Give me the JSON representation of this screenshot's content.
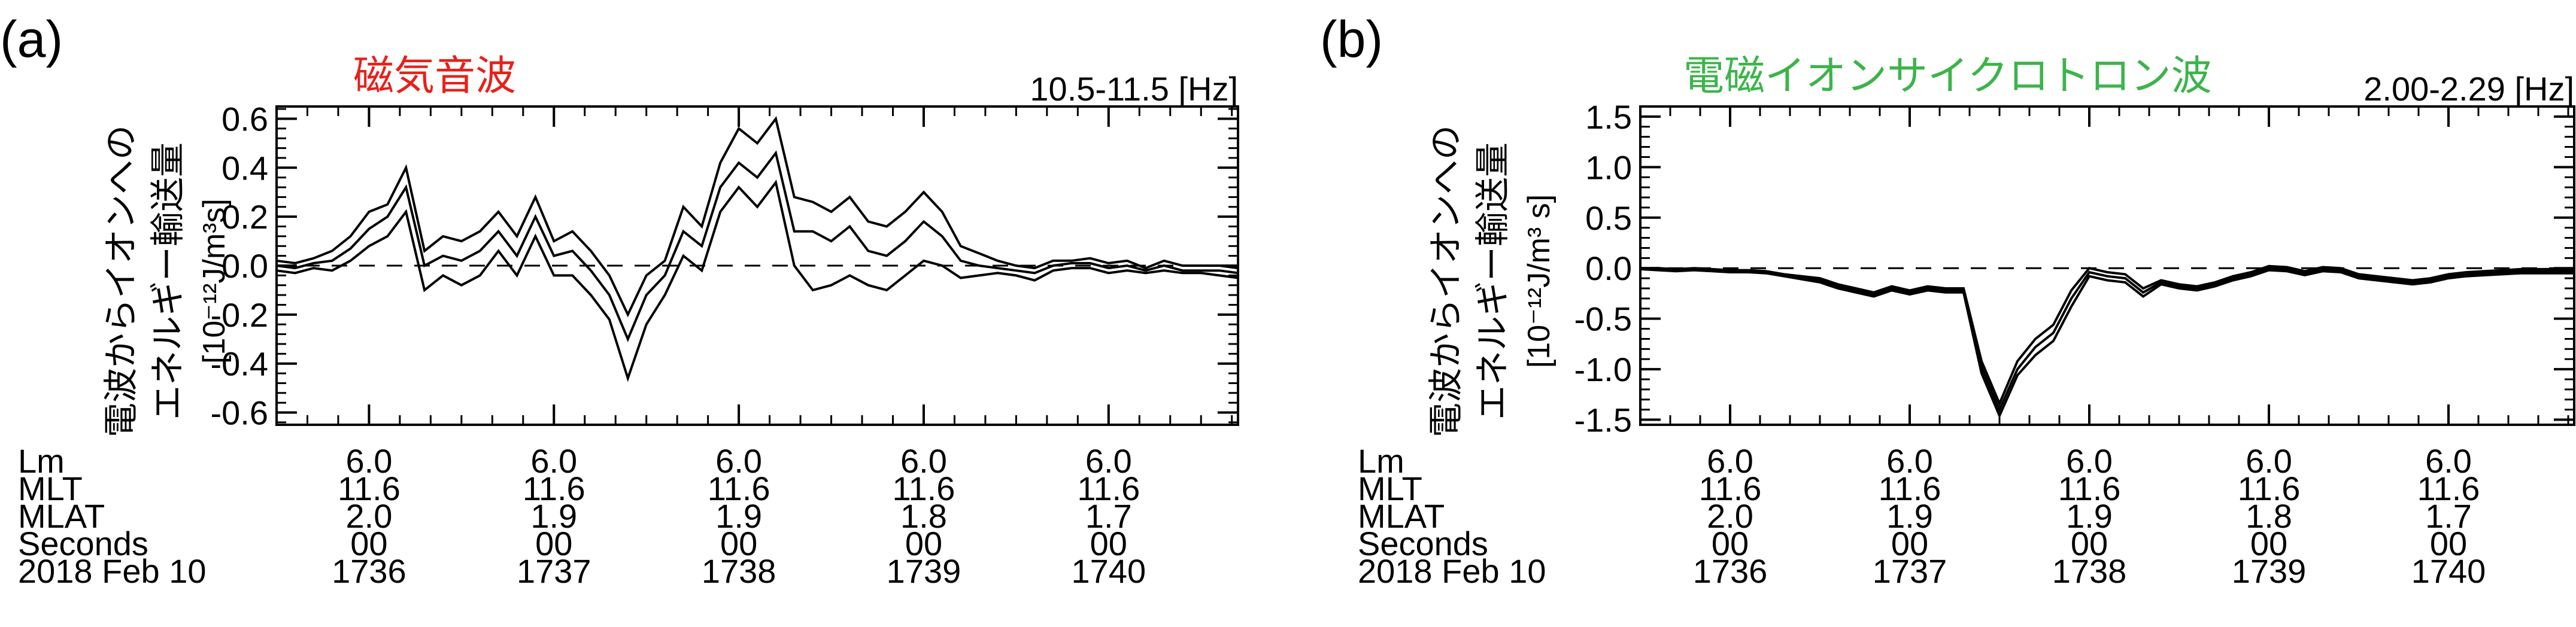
{
  "panels": [
    {
      "label": "(a)",
      "title": "磁気音波",
      "title_color": "#e8201a",
      "freq": "10.5-11.5 [Hz]",
      "ylabel_line1": "電波からイオンへの",
      "ylabel_line2": "エネルギー輸送量",
      "ylabel_unit": "[10⁻¹²J/m³s]"
    },
    {
      "label": "(b)",
      "title": "電磁イオンサイクロトロン波",
      "title_color": "#3cb44b",
      "freq": "2.00-2.29 [Hz]",
      "ylabel_line1": "電波からイオンへの",
      "ylabel_line2": "エネルギー輸送量",
      "ylabel_unit": "[10⁻¹²J/m³ s]"
    }
  ],
  "ephemeris_row_labels": [
    "Lm",
    "MLT",
    "MLAT",
    "Seconds",
    "2018 Feb 10"
  ],
  "ephemeris_columns": [
    {
      "Lm": "6.0",
      "MLT": "11.6",
      "MLAT": "2.0",
      "Seconds": "00",
      "time": "1736"
    },
    {
      "Lm": "6.0",
      "MLT": "11.6",
      "MLAT": "1.9",
      "Seconds": "00",
      "time": "1737"
    },
    {
      "Lm": "6.0",
      "MLT": "11.6",
      "MLAT": "1.9",
      "Seconds": "00",
      "time": "1738"
    },
    {
      "Lm": "6.0",
      "MLT": "11.6",
      "MLAT": "1.8",
      "Seconds": "00",
      "time": "1739"
    },
    {
      "Lm": "6.0",
      "MLT": "11.6",
      "MLAT": "1.7",
      "Seconds": "00",
      "time": "1740"
    }
  ],
  "chart_data": [
    {
      "type": "line",
      "title": "磁気音波",
      "subtitle": "10.5-11.5 [Hz]",
      "xlabel": "",
      "ylabel": "電波からイオンへの エネルギー輸送量 [10⁻¹²J/m³s]",
      "xlim": [
        1735.5,
        1740.7
      ],
      "ylim": [
        -0.65,
        0.65
      ],
      "yticks": [
        "0.6",
        "0.4",
        "0.2",
        "0.0",
        "-0.2",
        "-0.4",
        "-0.6"
      ],
      "ytick_values": [
        0.6,
        0.4,
        0.2,
        0.0,
        -0.2,
        -0.4,
        -0.6
      ],
      "xticks": [
        1736,
        1737,
        1738,
        1739,
        1740
      ],
      "zero_line": "dashed",
      "x": [
        1735.5,
        1735.6,
        1735.7,
        1735.8,
        1735.9,
        1736.0,
        1736.1,
        1736.2,
        1736.3,
        1736.4,
        1736.5,
        1736.6,
        1736.7,
        1736.8,
        1736.9,
        1737.0,
        1737.1,
        1737.2,
        1737.3,
        1737.4,
        1737.5,
        1737.6,
        1737.7,
        1737.8,
        1737.9,
        1738.0,
        1738.1,
        1738.2,
        1738.3,
        1738.4,
        1738.5,
        1738.6,
        1738.7,
        1738.8,
        1738.9,
        1739.0,
        1739.1,
        1739.2,
        1739.3,
        1739.4,
        1739.5,
        1739.6,
        1739.7,
        1739.8,
        1739.9,
        1740.0,
        1740.1,
        1740.2,
        1740.3,
        1740.4,
        1740.5,
        1740.6,
        1740.7
      ],
      "series": [
        {
          "values": [
            0.02,
            0.01,
            0.03,
            0.06,
            0.12,
            0.22,
            0.25,
            0.4,
            0.06,
            0.12,
            0.1,
            0.14,
            0.22,
            0.12,
            0.28,
            0.1,
            0.14,
            0.06,
            -0.04,
            -0.2,
            -0.04,
            0.02,
            0.24,
            0.16,
            0.42,
            0.56,
            0.5,
            0.6,
            0.28,
            0.26,
            0.22,
            0.28,
            0.18,
            0.16,
            0.22,
            0.3,
            0.22,
            0.08,
            0.05,
            0.02,
            0.0,
            -0.01,
            0.02,
            0.02,
            0.03,
            0.01,
            0.02,
            -0.01,
            0.02,
            0.0,
            0.0,
            0.0,
            -0.01
          ]
        },
        {
          "values": [
            0.0,
            -0.01,
            0.01,
            0.02,
            0.07,
            0.15,
            0.2,
            0.32,
            0.0,
            0.04,
            0.02,
            0.06,
            0.14,
            0.04,
            0.2,
            0.04,
            0.06,
            -0.02,
            -0.12,
            -0.3,
            -0.12,
            -0.04,
            0.14,
            0.08,
            0.32,
            0.42,
            0.36,
            0.46,
            0.14,
            0.14,
            0.1,
            0.16,
            0.06,
            0.04,
            0.1,
            0.18,
            0.12,
            0.02,
            0.0,
            -0.01,
            -0.02,
            -0.03,
            0.0,
            0.01,
            0.01,
            -0.01,
            0.0,
            -0.02,
            0.0,
            -0.02,
            -0.02,
            -0.02,
            -0.03
          ]
        },
        {
          "values": [
            -0.02,
            -0.03,
            -0.01,
            -0.02,
            0.02,
            0.08,
            0.12,
            0.22,
            -0.1,
            -0.04,
            -0.08,
            -0.04,
            0.06,
            -0.04,
            0.12,
            -0.04,
            -0.04,
            -0.12,
            -0.22,
            -0.46,
            -0.24,
            -0.12,
            0.04,
            -0.02,
            0.22,
            0.32,
            0.24,
            0.34,
            0.0,
            -0.1,
            -0.08,
            -0.04,
            -0.08,
            -0.1,
            -0.04,
            0.02,
            0.0,
            -0.05,
            -0.04,
            -0.03,
            -0.04,
            -0.06,
            -0.02,
            -0.01,
            -0.01,
            -0.03,
            -0.02,
            -0.03,
            -0.02,
            -0.03,
            -0.03,
            -0.04,
            -0.05
          ]
        }
      ]
    },
    {
      "type": "line",
      "title": "電磁イオンサイクロトロン波",
      "subtitle": "2.00-2.29 [Hz]",
      "xlabel": "",
      "ylabel": "電波からイオンへの エネルギー輸送量 [10⁻¹²J/m³ s]",
      "xlim": [
        1735.5,
        1740.7
      ],
      "ylim": [
        -1.55,
        1.6
      ],
      "yticks": [
        "1.5",
        "1.0",
        "0.5",
        "0.0",
        "-0.5",
        "-1.0",
        "-1.5"
      ],
      "ytick_values": [
        1.5,
        1.0,
        0.5,
        0.0,
        -0.5,
        -1.0,
        -1.5
      ],
      "xticks": [
        1736,
        1737,
        1738,
        1739,
        1740
      ],
      "zero_line": "dashed",
      "x": [
        1735.5,
        1735.6,
        1735.7,
        1735.8,
        1735.9,
        1736.0,
        1736.1,
        1736.2,
        1736.3,
        1736.4,
        1736.5,
        1736.6,
        1736.7,
        1736.8,
        1736.9,
        1737.0,
        1737.1,
        1737.2,
        1737.3,
        1737.4,
        1737.5,
        1737.6,
        1737.7,
        1737.8,
        1737.9,
        1738.0,
        1738.1,
        1738.2,
        1738.3,
        1738.4,
        1738.5,
        1738.6,
        1738.7,
        1738.8,
        1738.9,
        1739.0,
        1739.1,
        1739.2,
        1739.3,
        1739.4,
        1739.5,
        1739.6,
        1739.7,
        1739.8,
        1739.9,
        1740.0,
        1740.1,
        1740.2,
        1740.3,
        1740.4,
        1740.5,
        1740.6,
        1740.7
      ],
      "series": [
        {
          "values": [
            0.0,
            0.0,
            -0.01,
            0.0,
            -0.01,
            -0.02,
            -0.02,
            -0.03,
            -0.06,
            -0.08,
            -0.1,
            -0.16,
            -0.2,
            -0.24,
            -0.18,
            -0.22,
            -0.18,
            -0.2,
            -0.2,
            -0.92,
            -1.34,
            -0.92,
            -0.7,
            -0.56,
            -0.22,
            0.0,
            -0.04,
            -0.06,
            -0.2,
            -0.12,
            -0.16,
            -0.18,
            -0.14,
            -0.08,
            -0.04,
            0.02,
            0.01,
            -0.03,
            0.01,
            0.0,
            -0.06,
            -0.08,
            -0.1,
            -0.12,
            -0.1,
            -0.06,
            -0.04,
            -0.03,
            -0.02,
            -0.01,
            -0.01,
            -0.01,
            -0.01
          ]
        },
        {
          "values": [
            0.0,
            -0.01,
            -0.02,
            -0.01,
            -0.02,
            -0.03,
            -0.03,
            -0.04,
            -0.07,
            -0.1,
            -0.12,
            -0.18,
            -0.22,
            -0.26,
            -0.2,
            -0.24,
            -0.2,
            -0.22,
            -0.22,
            -0.98,
            -1.4,
            -1.0,
            -0.78,
            -0.64,
            -0.3,
            -0.04,
            -0.08,
            -0.1,
            -0.24,
            -0.14,
            -0.18,
            -0.2,
            -0.16,
            -0.1,
            -0.06,
            0.0,
            -0.01,
            -0.05,
            -0.01,
            -0.02,
            -0.08,
            -0.1,
            -0.12,
            -0.14,
            -0.12,
            -0.08,
            -0.06,
            -0.05,
            -0.04,
            -0.03,
            -0.03,
            -0.03,
            -0.03
          ]
        },
        {
          "values": [
            -0.01,
            -0.02,
            -0.03,
            -0.02,
            -0.03,
            -0.04,
            -0.04,
            -0.05,
            -0.08,
            -0.11,
            -0.14,
            -0.2,
            -0.24,
            -0.28,
            -0.22,
            -0.26,
            -0.22,
            -0.24,
            -0.24,
            -1.04,
            -1.46,
            -1.06,
            -0.86,
            -0.72,
            -0.38,
            -0.08,
            -0.12,
            -0.14,
            -0.28,
            -0.16,
            -0.2,
            -0.22,
            -0.18,
            -0.12,
            -0.08,
            -0.02,
            -0.03,
            -0.07,
            -0.03,
            -0.04,
            -0.1,
            -0.12,
            -0.14,
            -0.16,
            -0.14,
            -0.1,
            -0.08,
            -0.07,
            -0.06,
            -0.05,
            -0.05,
            -0.05,
            -0.05
          ]
        }
      ]
    }
  ]
}
